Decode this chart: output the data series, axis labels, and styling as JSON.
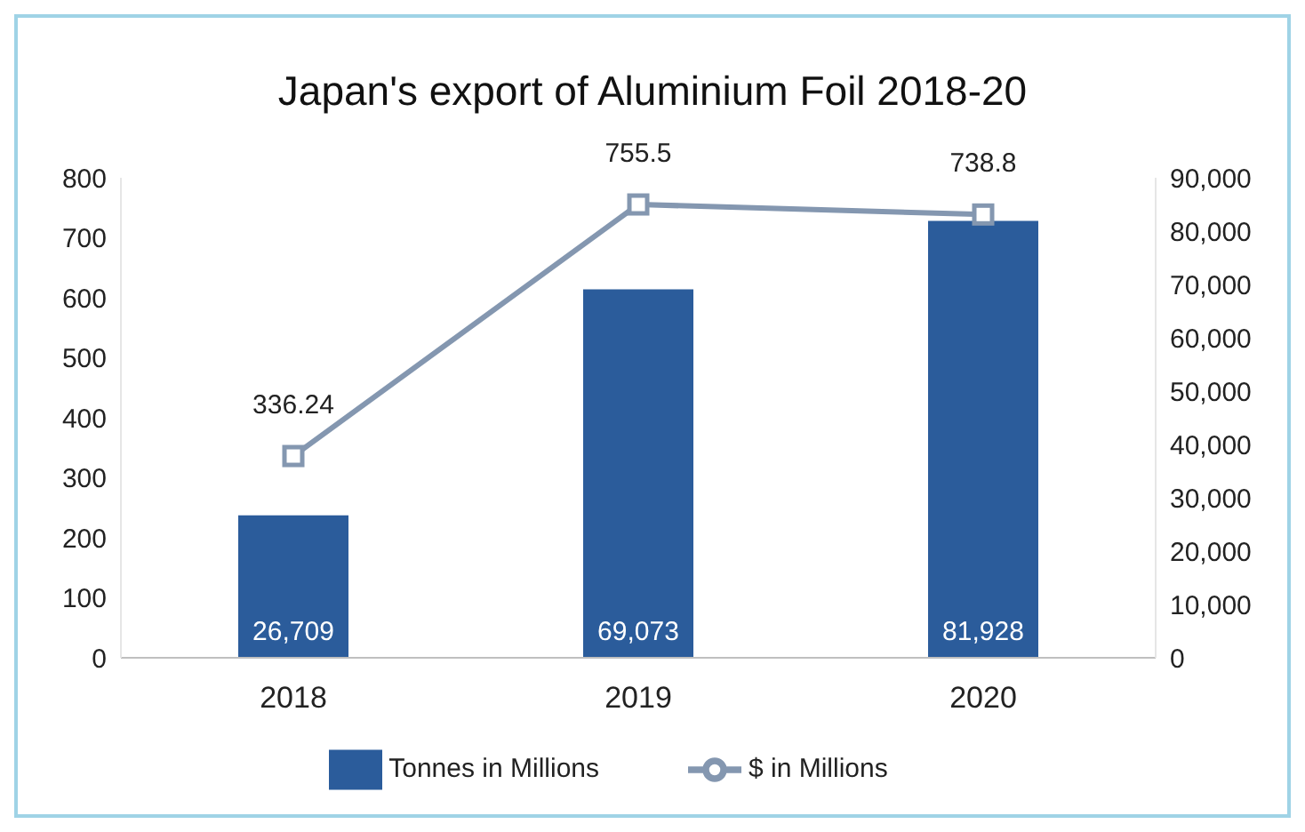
{
  "chart_data": {
    "type": "bar",
    "title": "Japan's export of Aluminium Foil 2018-20",
    "categories": [
      "2018",
      "2019",
      "2020"
    ],
    "series": [
      {
        "name": "Tonnes in Millions",
        "axis": "y2",
        "color": "#2b5c9b",
        "values": [
          26709,
          69073,
          81928
        ],
        "value_labels": [
          "26,709",
          "69,073",
          "81,928"
        ]
      },
      {
        "name": "$ in Millions",
        "type": "line",
        "color": "#8497b0",
        "values": [
          336.24,
          755.5,
          738.8
        ],
        "value_labels": [
          "336.24",
          "755.5",
          "738.8"
        ]
      }
    ],
    "ylim": [
      0,
      800
    ],
    "yticks": [
      0,
      100,
      200,
      300,
      400,
      500,
      600,
      700,
      800
    ],
    "y2lim": [
      0,
      90000
    ],
    "y2ticks": [
      0,
      {
        "value": 10000,
        "label": "10,000"
      },
      {
        "value": 20000,
        "label": "20,000"
      },
      {
        "value": 30000,
        "label": "30,000"
      },
      {
        "value": 40000,
        "label": "40,000"
      },
      {
        "value": 50000,
        "label": "50,000"
      },
      {
        "value": 60000,
        "label": "60,000"
      },
      {
        "value": 70000,
        "label": "70,000"
      },
      {
        "value": 80000,
        "label": "80,000"
      },
      {
        "value": 90000,
        "label": "90,000"
      }
    ],
    "grid": false,
    "legend": "bottom",
    "marker": "square",
    "line_style": "solid"
  }
}
